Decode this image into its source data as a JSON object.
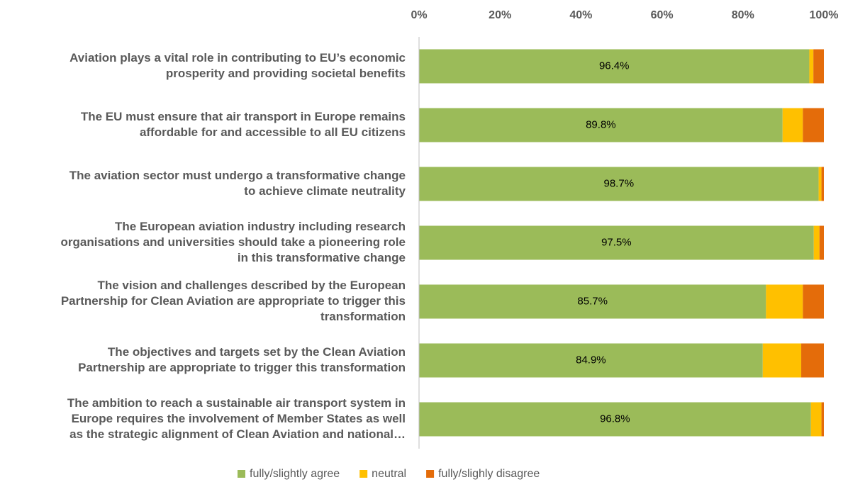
{
  "chart_data": {
    "type": "stacked-barh",
    "categories": [
      [
        "Aviation plays a vital role in contributing to EU’s economic",
        "prosperity and providing societal benefits"
      ],
      [
        "The EU must ensure that air transport in Europe remains",
        "affordable for and accessible to all EU citizens"
      ],
      [
        "The aviation sector must undergo a transformative change",
        "to achieve climate neutrality"
      ],
      [
        "The European aviation industry including research",
        "organisations and universities should take a pioneering role",
        "in this transformative change"
      ],
      [
        "The vision and challenges described by the European",
        "Partnership for Clean Aviation are appropriate to trigger this",
        "transformation"
      ],
      [
        "The objectives and targets set by the Clean Aviation",
        "Partnership are appropriate to trigger this transformation"
      ],
      [
        "The ambition to reach a sustainable air transport system in",
        "Europe requires the involvement of Member States as well",
        "as the strategic alignment of Clean Aviation and national…"
      ]
    ],
    "series": [
      {
        "name": "fully/slightly agree",
        "color": "#9bbb59",
        "values": [
          96.4,
          89.8,
          98.7,
          97.5,
          85.7,
          84.9,
          96.8
        ],
        "value_labels": [
          "96.4%",
          "89.8%",
          "98.7%",
          "97.5%",
          "85.7%",
          "84.9%",
          "96.8%"
        ]
      },
      {
        "name": "neutral",
        "color": "#ffc000",
        "values": [
          1.0,
          5.0,
          0.7,
          1.4,
          9.1,
          9.5,
          2.6
        ]
      },
      {
        "name": "fully/slighly disagree",
        "color": "#e46c0a",
        "values": [
          2.6,
          5.2,
          0.6,
          1.1,
          5.2,
          5.6,
          0.6
        ]
      }
    ],
    "xlim": [
      0,
      100
    ],
    "xticks": [
      {
        "value": 0,
        "label": "0%"
      },
      {
        "value": 20,
        "label": "20%"
      },
      {
        "value": 40,
        "label": "40%"
      },
      {
        "value": 60,
        "label": "60%"
      },
      {
        "value": 80,
        "label": "80%"
      },
      {
        "value": 100,
        "label": "100%"
      }
    ],
    "legend": "bottom"
  }
}
